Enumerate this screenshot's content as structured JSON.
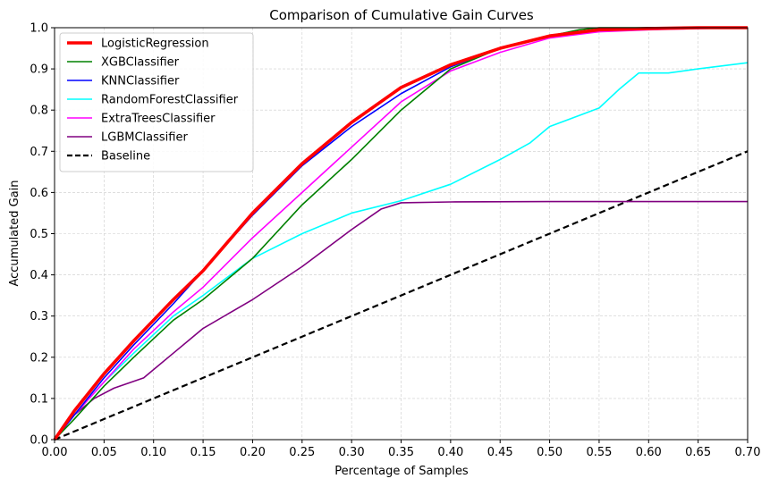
{
  "chart_data": {
    "type": "line",
    "title": "Comparison of Cumulative Gain Curves",
    "xlabel": "Percentage of Samples",
    "ylabel": "Accumulated Gain",
    "xlim": [
      0,
      0.7
    ],
    "ylim": [
      0,
      1.0
    ],
    "grid": true,
    "legend_position": "top-left",
    "x_ticks": [
      "0.00",
      "0.05",
      "0.10",
      "0.15",
      "0.20",
      "0.25",
      "0.30",
      "0.35",
      "0.40",
      "0.45",
      "0.50",
      "0.55",
      "0.60",
      "0.65",
      "0.70"
    ],
    "y_ticks": [
      "0.0",
      "0.1",
      "0.2",
      "0.3",
      "0.4",
      "0.5",
      "0.6",
      "0.7",
      "0.8",
      "0.9",
      "1.0"
    ],
    "series": [
      {
        "name": "LogisticRegression",
        "color": "#ff0000",
        "style": "solid",
        "width": "thick",
        "x": [
          0,
          0.02,
          0.05,
          0.08,
          0.1,
          0.12,
          0.15,
          0.2,
          0.25,
          0.3,
          0.35,
          0.4,
          0.45,
          0.5,
          0.55,
          0.6,
          0.65,
          0.7
        ],
        "y": [
          0,
          0.07,
          0.16,
          0.24,
          0.29,
          0.34,
          0.41,
          0.55,
          0.67,
          0.77,
          0.855,
          0.91,
          0.95,
          0.98,
          0.995,
          0.998,
          1.0,
          1.0
        ]
      },
      {
        "name": "XGBClassifier",
        "color": "#008000",
        "style": "solid",
        "width": "normal",
        "x": [
          0,
          0.02,
          0.05,
          0.08,
          0.1,
          0.12,
          0.15,
          0.2,
          0.25,
          0.3,
          0.35,
          0.4,
          0.45,
          0.5,
          0.53,
          0.55,
          0.6,
          0.65,
          0.7
        ],
        "y": [
          0,
          0.05,
          0.13,
          0.2,
          0.245,
          0.29,
          0.34,
          0.44,
          0.57,
          0.68,
          0.8,
          0.9,
          0.95,
          0.98,
          0.995,
          1.0,
          1.0,
          1.0,
          1.0
        ]
      },
      {
        "name": "KNNClassifier",
        "color": "#0000ff",
        "style": "solid",
        "width": "normal",
        "x": [
          0,
          0.02,
          0.05,
          0.08,
          0.1,
          0.12,
          0.15,
          0.2,
          0.25,
          0.3,
          0.35,
          0.4,
          0.45,
          0.5,
          0.55,
          0.6,
          0.65,
          0.7
        ],
        "y": [
          0,
          0.06,
          0.15,
          0.23,
          0.28,
          0.33,
          0.41,
          0.545,
          0.665,
          0.76,
          0.84,
          0.905,
          0.95,
          0.98,
          0.997,
          1.0,
          1.0,
          1.0
        ]
      },
      {
        "name": "RandomForestClassifier",
        "color": "#00ffff",
        "style": "solid",
        "width": "normal",
        "x": [
          0,
          0.02,
          0.05,
          0.08,
          0.1,
          0.12,
          0.15,
          0.2,
          0.25,
          0.3,
          0.35,
          0.4,
          0.45,
          0.48,
          0.5,
          0.55,
          0.57,
          0.59,
          0.6,
          0.62,
          0.65,
          0.7
        ],
        "y": [
          0,
          0.06,
          0.14,
          0.21,
          0.255,
          0.3,
          0.35,
          0.44,
          0.5,
          0.55,
          0.58,
          0.62,
          0.68,
          0.72,
          0.76,
          0.805,
          0.85,
          0.89,
          0.89,
          0.89,
          0.9,
          0.915
        ]
      },
      {
        "name": "ExtraTreesClassifier",
        "color": "#ff00ff",
        "style": "solid",
        "width": "normal",
        "x": [
          0,
          0.02,
          0.05,
          0.08,
          0.1,
          0.12,
          0.15,
          0.2,
          0.25,
          0.3,
          0.35,
          0.4,
          0.45,
          0.5,
          0.55,
          0.6,
          0.65,
          0.7
        ],
        "y": [
          0,
          0.06,
          0.14,
          0.22,
          0.265,
          0.31,
          0.37,
          0.49,
          0.6,
          0.71,
          0.82,
          0.895,
          0.94,
          0.975,
          0.99,
          0.995,
          0.998,
          1.0
        ]
      },
      {
        "name": "LGBMClassifier",
        "color": "#800080",
        "style": "solid",
        "width": "normal",
        "x": [
          0,
          0.02,
          0.04,
          0.06,
          0.09,
          0.1,
          0.12,
          0.15,
          0.2,
          0.25,
          0.3,
          0.33,
          0.35,
          0.4,
          0.5,
          0.6,
          0.7
        ],
        "y": [
          0,
          0.06,
          0.1,
          0.125,
          0.15,
          0.17,
          0.21,
          0.27,
          0.34,
          0.42,
          0.51,
          0.56,
          0.575,
          0.577,
          0.578,
          0.578,
          0.578
        ]
      },
      {
        "name": "Baseline",
        "color": "#000000",
        "style": "dashed",
        "width": "thick",
        "x": [
          0,
          0.7
        ],
        "y": [
          0,
          0.7
        ]
      }
    ]
  }
}
